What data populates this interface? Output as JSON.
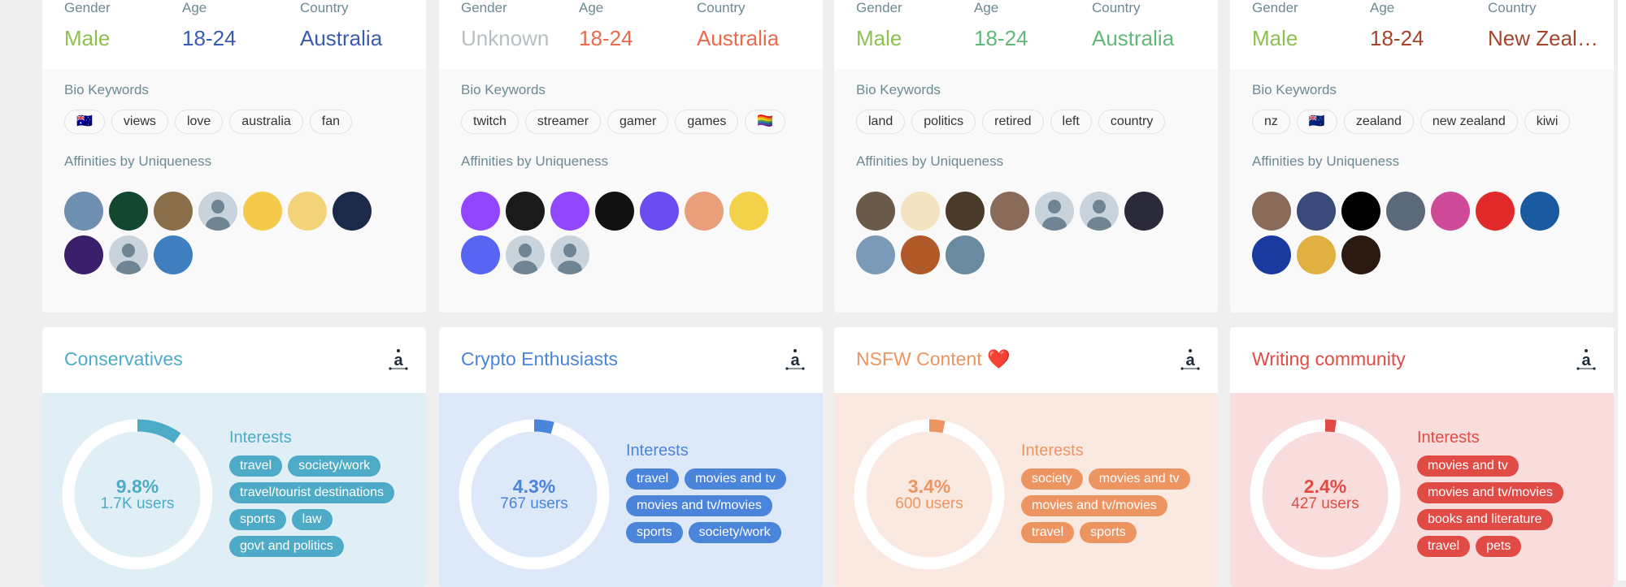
{
  "labels": {
    "gender": "Gender",
    "age": "Age",
    "country": "Country",
    "bio": "Bio Keywords",
    "affinities": "Affinities by Uniqueness",
    "interests": "Interests"
  },
  "top_cards": [
    {
      "gender": "Male",
      "age": "18-24",
      "country": "Australia",
      "colors": {
        "gender": "#8cc152",
        "age": "#3a5bb0",
        "country": "#3a5bb0"
      },
      "keywords": [
        "🇦🇺",
        "views",
        "love",
        "australia",
        "fan"
      ],
      "avatars": [
        "#6f8fb0",
        "#14472f",
        "#8a6e4a",
        "placeholder",
        "#f5c94a",
        "#f2d37a",
        "#1c2a4a",
        "#3a1f6a",
        "placeholder",
        "#3f7fbf"
      ]
    },
    {
      "gender": "Unknown",
      "age": "18-24",
      "country": "Australia",
      "colors": {
        "gender": "#b8bfc3",
        "age": "#ea6a4c",
        "country": "#ea6a4c"
      },
      "keywords": [
        "twitch",
        "streamer",
        "gamer",
        "games",
        "🏳️‍🌈"
      ],
      "avatars": [
        "#9146ff",
        "#1a1a1a",
        "#9146ff",
        "#111111",
        "#6a4cf0",
        "#e8a07a",
        "#f3d24a",
        "#5865f2",
        "placeholder",
        "placeholder"
      ]
    },
    {
      "gender": "Male",
      "age": "18-24",
      "country": "Australia",
      "colors": {
        "gender": "#8cc152",
        "age": "#62b878",
        "country": "#62b878"
      },
      "keywords": [
        "land",
        "politics",
        "retired",
        "left",
        "country"
      ],
      "avatars": [
        "#6a5a4a",
        "#f3e3c0",
        "#4a3a2a",
        "#8a6a5a",
        "placeholder",
        "placeholder",
        "#2a2a3a",
        "#7a9ab8",
        "#b05a2a",
        "#6a8aa0"
      ]
    },
    {
      "gender": "Male",
      "age": "18-24",
      "country": "New Zeal…",
      "colors": {
        "gender": "#8cc152",
        "age": "#a3452c",
        "country": "#a3452c"
      },
      "keywords": [
        "nz",
        "🇳🇿",
        "zealand",
        "new zealand",
        "kiwi"
      ],
      "avatars": [
        "#8a6a5a",
        "#3a4a7a",
        "#000000",
        "#5a6a7a",
        "#d04a9a",
        "#e02a2a",
        "#1a5aa0",
        "#1a3aa0",
        "#e0b040",
        "#2a1a10"
      ]
    }
  ],
  "bottom_cards": [
    {
      "title": "Conservatives",
      "percent": 9.8,
      "percent_label": "9.8%",
      "users": "1.7K users",
      "color": "#4eabc7",
      "bg": "#dfeff5",
      "interests": [
        "travel",
        "society/work",
        "travel/tourist destinations",
        "sports",
        "law",
        "govt and politics"
      ]
    },
    {
      "title": "Crypto Enthusiasts",
      "percent": 4.3,
      "percent_label": "4.3%",
      "users": "767 users",
      "color": "#4a84db",
      "bg": "#dde9f8",
      "interests": [
        "travel",
        "movies and tv",
        "movies and tv/movies",
        "sports",
        "society/work"
      ]
    },
    {
      "title": "NSFW Content ❤️",
      "percent": 3.4,
      "percent_label": "3.4%",
      "users": "600 users",
      "color": "#ec9563",
      "bg": "#fae9e1",
      "interests": [
        "society",
        "movies and tv",
        "movies and tv/movies",
        "travel",
        "sports"
      ]
    },
    {
      "title": "Writing community",
      "percent": 2.4,
      "percent_label": "2.4%",
      "users": "427 users",
      "color": "#e04c45",
      "bg": "#f9dcdc",
      "interests": [
        "movies and tv",
        "movies and tv/movies",
        "books and literature",
        "travel",
        "pets"
      ]
    }
  ]
}
